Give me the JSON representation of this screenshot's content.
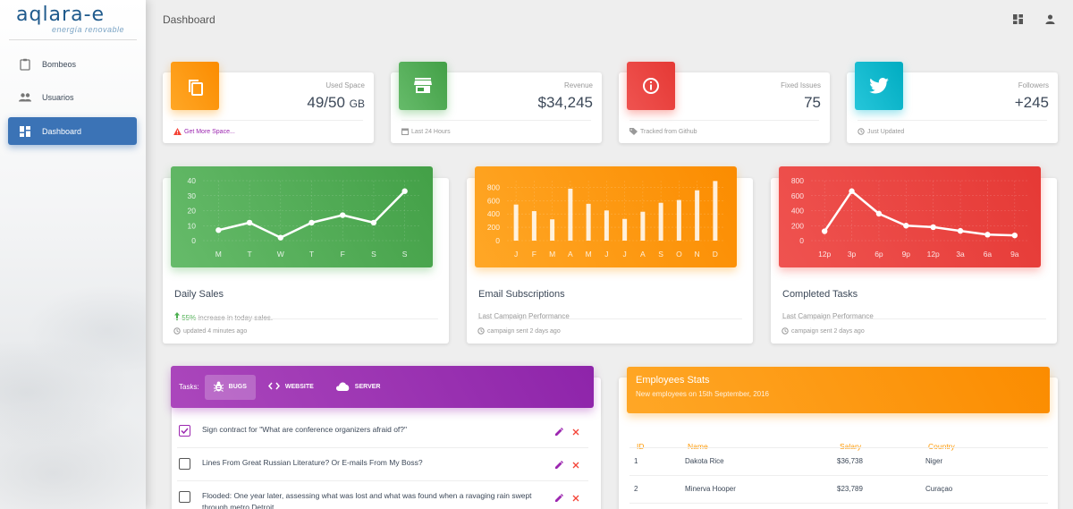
{
  "logo": {
    "main": "aqlara-e",
    "sub": "energía renovable"
  },
  "sidebar": {
    "items": [
      {
        "label": "Bombeos",
        "icon": "clipboard-icon"
      },
      {
        "label": "Usuarios",
        "icon": "people-icon"
      },
      {
        "label": "Dashboard",
        "icon": "dashboard-icon",
        "active": true
      }
    ]
  },
  "header": {
    "title": "Dashboard",
    "icons": [
      "dashboard-icon",
      "person-icon"
    ]
  },
  "stats": [
    {
      "category": "Used Space",
      "value": "49/50",
      "unit": "GB",
      "footer": "Get More Space...",
      "footer_icon": "warning-icon",
      "color": "#fb8c00",
      "icon": "content-copy-icon"
    },
    {
      "category": "Revenue",
      "value": "$34,245",
      "unit": "",
      "footer": "Last 24 Hours",
      "footer_icon": "date-range-icon",
      "color": "#43a047",
      "icon": "store-icon"
    },
    {
      "category": "Fixed Issues",
      "value": "75",
      "unit": "",
      "footer": "Tracked from Github",
      "footer_icon": "tag-icon",
      "color": "#e53935",
      "icon": "info-icon"
    },
    {
      "category": "Followers",
      "value": "+245",
      "unit": "",
      "footer": "Just Updated",
      "footer_icon": "update-icon",
      "color": "#00acc1",
      "icon": "twitter-icon"
    }
  ],
  "charts": [
    {
      "title": "Daily Sales",
      "highlight": "55%",
      "category": "increase in today sales.",
      "footer": "updated 4 minutes ago",
      "color": "#43a047"
    },
    {
      "title": "Email Subscriptions",
      "category": "Last Campaign Performance",
      "footer": "campaign sent 2 days ago",
      "color": "#fb8c00"
    },
    {
      "title": "Completed Tasks",
      "category": "Last Campaign Performance",
      "footer": "campaign sent 2 days ago",
      "color": "#e53935"
    }
  ],
  "chart_data": [
    {
      "type": "line",
      "categories": [
        "M",
        "T",
        "W",
        "T",
        "F",
        "S",
        "S"
      ],
      "values": [
        7,
        12,
        2,
        12,
        17,
        12,
        33
      ],
      "yticks": [
        0,
        10,
        20,
        30,
        40
      ],
      "ylim": [
        0,
        40
      ],
      "grid": true
    },
    {
      "type": "bar",
      "categories": [
        "J",
        "F",
        "M",
        "A",
        "M",
        "J",
        "J",
        "A",
        "S",
        "O",
        "N",
        "D"
      ],
      "values": [
        542,
        443,
        320,
        780,
        553,
        453,
        326,
        434,
        568,
        610,
        756,
        895
      ],
      "yticks": [
        0,
        200,
        400,
        600,
        800
      ],
      "ylim": [
        0,
        900
      ],
      "grid": true
    },
    {
      "type": "line",
      "categories": [
        "12p",
        "3p",
        "6p",
        "9p",
        "12p",
        "3a",
        "6a",
        "9a"
      ],
      "values": [
        125,
        660,
        360,
        200,
        180,
        130,
        80,
        70
      ],
      "yticks": [
        0,
        200,
        400,
        600,
        800
      ],
      "ylim": [
        0,
        800
      ],
      "grid": true
    }
  ],
  "tasks": {
    "label": "Tasks:",
    "tabs": [
      {
        "label": "BUGS",
        "icon": "bug-icon",
        "active": true
      },
      {
        "label": "WEBSITE",
        "icon": "code-icon"
      },
      {
        "label": "SERVER",
        "icon": "cloud-icon"
      }
    ],
    "items": [
      {
        "text": "Sign contract for \"What are conference organizers afraid of?\"",
        "checked": true
      },
      {
        "text": "Lines From Great Russian Literature? Or E-mails From My Boss?",
        "checked": false
      },
      {
        "text": "Flooded: One year later, assessing what was lost and what was found when a ravaging rain swept through metro Detroit",
        "checked": false
      }
    ]
  },
  "employees": {
    "title": "Employees Stats",
    "subtitle": "New employees on 15th September, 2016",
    "headers": [
      "ID",
      "Name",
      "Salary",
      "Country"
    ],
    "rows": [
      [
        "1",
        "Dakota Rice",
        "$36,738",
        "Niger"
      ],
      [
        "2",
        "Minerva Hooper",
        "$23,789",
        "Curaçao"
      ]
    ]
  }
}
